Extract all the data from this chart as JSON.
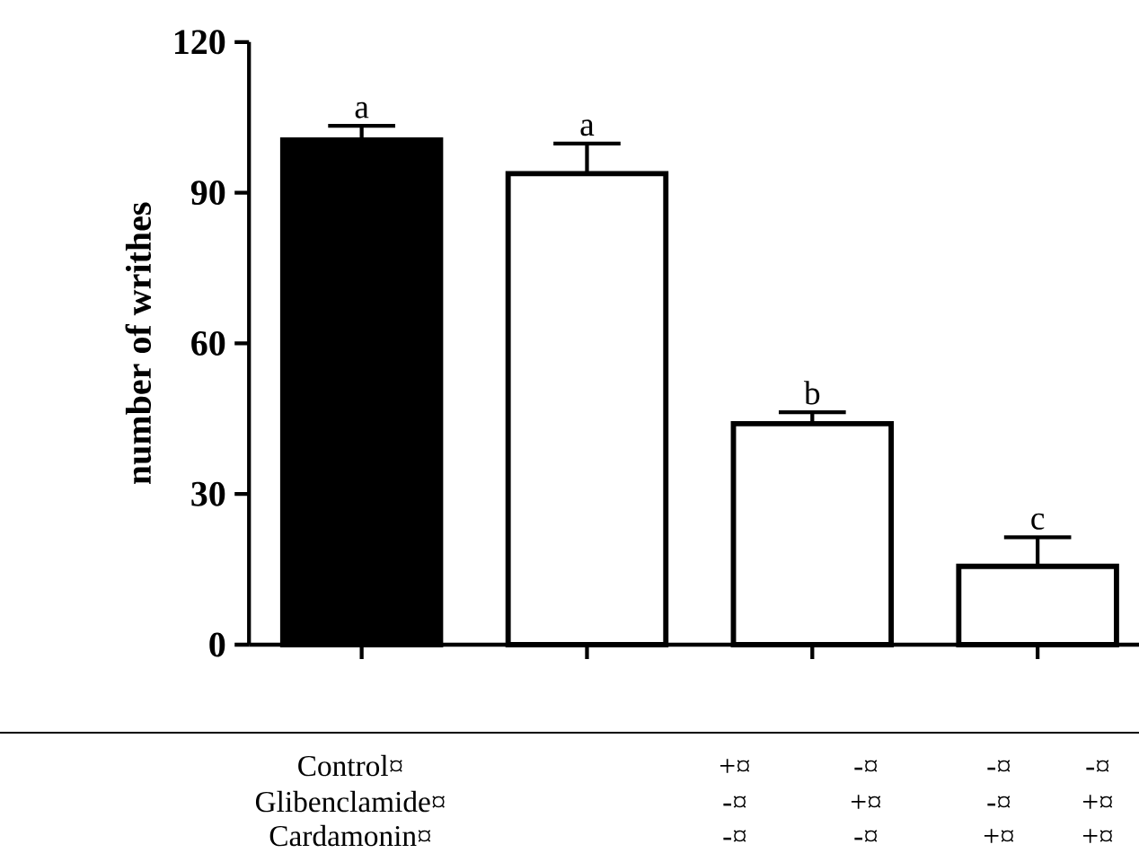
{
  "chart_data": {
    "type": "bar",
    "ylabel": "number of writhes",
    "categories": [
      null,
      null,
      null,
      null
    ],
    "values": [
      100.5,
      93.8,
      44,
      15.6
    ],
    "colors": [
      "#000000",
      "#ffffff",
      "#ffffff",
      "#ffffff"
    ],
    "errors": [
      [
        100.5,
        103.3
      ],
      [
        93.8,
        99.8
      ],
      [
        44,
        46.3
      ],
      [
        15.6,
        21.4
      ]
    ],
    "value_labels": [
      "a",
      "a",
      "b",
      "c"
    ],
    "ylim": [
      0,
      120
    ],
    "yticks": [
      0,
      30,
      60,
      90,
      120
    ],
    "grid": false,
    "annotations": [
      "Control¤",
      "+¤",
      "-¤",
      "-¤",
      "-¤",
      "Glibenclamide¤",
      "-¤",
      "+¤",
      "-¤",
      "+¤",
      "Cardamonin¤",
      "-¤",
      "-¤",
      "+¤",
      "+¤"
    ]
  }
}
